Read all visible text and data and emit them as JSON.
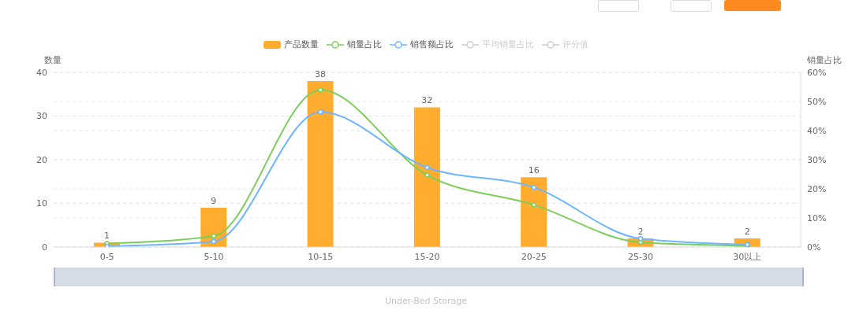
{
  "chart_data": {
    "type": "bar",
    "categories": [
      "0-5",
      "5-10",
      "10-15",
      "15-20",
      "20-25",
      "25-30",
      "30以上"
    ],
    "series": [
      {
        "name": "产品数量",
        "color": "#ffac2f",
        "values": [
          1,
          9,
          38,
          32,
          16,
          2,
          2
        ],
        "value_labels": [
          "1",
          "9",
          "38",
          "32",
          "16",
          "2",
          "2"
        ]
      },
      {
        "name": "销量占比",
        "type": "line",
        "axis": "y2",
        "color": "#7ccd5a",
        "values": [
          1.2,
          3.8,
          54,
          24.7,
          14.5,
          1.6,
          0.4
        ]
      },
      {
        "name": "销售额占比",
        "type": "line",
        "axis": "y2",
        "color": "#6bb6ff",
        "values": [
          0.3,
          1.9,
          46.4,
          27.3,
          20.5,
          2.9,
          0.8
        ]
      },
      {
        "name": "平均销量占比",
        "type": "line",
        "axis": "y2",
        "color": "#cccccc",
        "values": [
          null,
          null,
          null,
          null,
          null,
          null,
          null
        ]
      },
      {
        "name": "评分值",
        "type": "line",
        "axis": "y2",
        "color": "#cccccc",
        "values": [
          null,
          null,
          null,
          null,
          null,
          null,
          null
        ]
      }
    ],
    "ylabel": "数量",
    "y2label": "销量占比",
    "ylim": [
      0,
      40
    ],
    "yticks": [
      0,
      10,
      20,
      30,
      40
    ],
    "y2lim": [
      0,
      60
    ],
    "y2ticks": [
      {
        "value": 0,
        "label": "0%"
      },
      {
        "value": 10,
        "label": "10%"
      },
      {
        "value": 20,
        "label": "20%"
      },
      {
        "value": 30,
        "label": "30%"
      },
      {
        "value": 40,
        "label": "40%"
      },
      {
        "value": 50,
        "label": "50%"
      },
      {
        "value": 60,
        "label": "60%"
      }
    ],
    "grid": true,
    "legend": "top",
    "marker": "circle",
    "line_style": "solid",
    "annotations": [
      "Under-Bed Storage"
    ]
  }
}
